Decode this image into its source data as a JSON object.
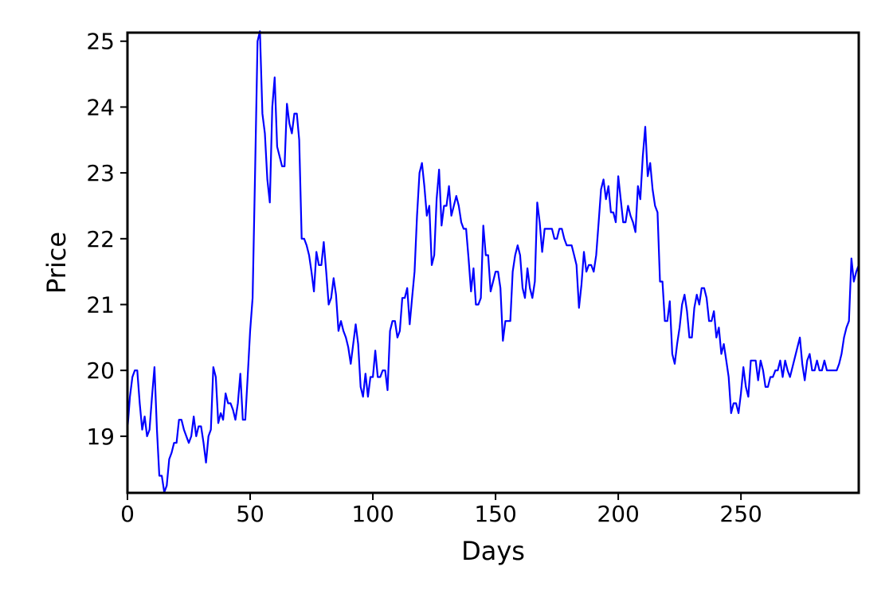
{
  "chart_data": {
    "type": "line",
    "x_label": "Days",
    "y_label": "Price",
    "color": "#0000ff",
    "x": [
      0,
      1,
      2,
      3,
      4,
      5,
      6,
      7,
      8,
      9,
      10,
      11,
      12,
      13,
      14,
      15,
      16,
      17,
      18,
      19,
      20,
      21,
      22,
      23,
      24,
      25,
      26,
      27,
      28,
      29,
      30,
      31,
      32,
      33,
      34,
      35,
      36,
      37,
      38,
      39,
      40,
      41,
      42,
      43,
      44,
      45,
      46,
      47,
      48,
      49,
      50,
      51,
      52,
      53,
      54,
      55,
      56,
      57,
      58,
      59,
      60,
      61,
      62,
      63,
      64,
      65,
      66,
      67,
      68,
      69,
      70,
      71,
      72,
      73,
      74,
      75,
      76,
      77,
      78,
      79,
      80,
      81,
      82,
      83,
      84,
      85,
      86,
      87,
      88,
      89,
      90,
      91,
      92,
      93,
      94,
      95,
      96,
      97,
      98,
      99,
      100,
      101,
      102,
      103,
      104,
      105,
      106,
      107,
      108,
      109,
      110,
      111,
      112,
      113,
      114,
      115,
      116,
      117,
      118,
      119,
      120,
      121,
      122,
      123,
      124,
      125,
      126,
      127,
      128,
      129,
      130,
      131,
      132,
      133,
      134,
      135,
      136,
      137,
      138,
      139,
      140,
      141,
      142,
      143,
      144,
      145,
      146,
      147,
      148,
      149,
      150,
      151,
      152,
      153,
      154,
      155,
      156,
      157,
      158,
      159,
      160,
      161,
      162,
      163,
      164,
      165,
      166,
      167,
      168,
      169,
      170,
      171,
      172,
      173,
      174,
      175,
      176,
      177,
      178,
      179,
      180,
      181,
      182,
      183,
      184,
      185,
      186,
      187,
      188,
      189,
      190,
      191,
      192,
      193,
      194,
      195,
      196,
      197,
      198,
      199,
      200,
      201,
      202,
      203,
      204,
      205,
      206,
      207,
      208,
      209,
      210,
      211,
      212,
      213,
      214,
      215,
      216,
      217,
      218,
      219,
      220,
      221,
      222,
      223,
      224,
      225,
      226,
      227,
      228,
      229,
      230,
      231,
      232,
      233,
      234,
      235,
      236,
      237,
      238,
      239,
      240,
      241,
      242,
      243,
      244,
      245,
      246,
      247,
      248,
      249,
      250,
      251,
      252,
      253,
      254,
      255,
      256,
      257,
      258,
      259,
      260,
      261,
      262,
      263,
      264,
      265,
      266,
      267,
      268,
      269,
      270,
      271,
      272,
      273,
      274,
      275,
      276,
      277,
      278,
      279,
      280,
      281,
      282,
      283,
      284,
      285,
      286,
      287,
      288,
      289,
      290,
      291,
      292,
      293,
      294,
      295,
      296,
      297,
      298
    ],
    "values": [
      19.1,
      19.6,
      19.9,
      20.0,
      20.0,
      19.5,
      19.1,
      19.3,
      19.0,
      19.1,
      19.6,
      20.05,
      19.1,
      18.4,
      18.4,
      18.15,
      18.25,
      18.65,
      18.75,
      18.9,
      18.9,
      19.25,
      19.25,
      19.1,
      19.0,
      18.9,
      19.0,
      19.3,
      19.0,
      19.15,
      19.15,
      18.9,
      18.6,
      19.0,
      19.1,
      20.05,
      19.9,
      19.2,
      19.35,
      19.25,
      19.65,
      19.5,
      19.5,
      19.4,
      19.25,
      19.5,
      19.95,
      19.25,
      19.25,
      19.9,
      20.6,
      21.1,
      23.0,
      25.0,
      25.15,
      23.9,
      23.6,
      22.9,
      22.55,
      24.0,
      24.45,
      23.4,
      23.25,
      23.1,
      23.1,
      24.05,
      23.75,
      23.6,
      23.9,
      23.9,
      23.5,
      22.0,
      22.0,
      21.9,
      21.75,
      21.5,
      21.2,
      21.8,
      21.6,
      21.6,
      21.95,
      21.5,
      21.0,
      21.1,
      21.4,
      21.15,
      20.6,
      20.75,
      20.6,
      20.5,
      20.35,
      20.1,
      20.4,
      20.7,
      20.4,
      19.75,
      19.6,
      19.95,
      19.6,
      19.9,
      19.9,
      20.3,
      19.9,
      19.9,
      20.0,
      20.0,
      19.7,
      20.6,
      20.75,
      20.75,
      20.5,
      20.6,
      21.1,
      21.1,
      21.25,
      20.7,
      21.1,
      21.5,
      22.35,
      23.0,
      23.15,
      22.8,
      22.35,
      22.5,
      21.6,
      21.75,
      22.6,
      23.05,
      22.2,
      22.5,
      22.5,
      22.8,
      22.35,
      22.5,
      22.65,
      22.5,
      22.25,
      22.15,
      22.15,
      21.7,
      21.2,
      21.55,
      21.0,
      21.0,
      21.1,
      22.2,
      21.75,
      21.75,
      21.2,
      21.35,
      21.5,
      21.5,
      21.25,
      20.45,
      20.75,
      20.75,
      20.75,
      21.5,
      21.75,
      21.9,
      21.75,
      21.25,
      21.1,
      21.55,
      21.25,
      21.1,
      21.35,
      22.55,
      22.25,
      21.8,
      22.15,
      22.15,
      22.15,
      22.15,
      22.0,
      22.0,
      22.15,
      22.15,
      22.0,
      21.9,
      21.9,
      21.9,
      21.75,
      21.6,
      20.95,
      21.3,
      21.8,
      21.5,
      21.6,
      21.6,
      21.5,
      21.75,
      22.25,
      22.75,
      22.9,
      22.6,
      22.8,
      22.4,
      22.4,
      22.25,
      22.95,
      22.6,
      22.25,
      22.25,
      22.5,
      22.35,
      22.25,
      22.1,
      22.8,
      22.6,
      23.25,
      23.7,
      22.95,
      23.15,
      22.75,
      22.5,
      22.4,
      21.35,
      21.35,
      20.75,
      20.75,
      21.05,
      20.25,
      20.1,
      20.4,
      20.65,
      21.0,
      21.15,
      20.9,
      20.5,
      20.5,
      20.95,
      21.15,
      21.0,
      21.25,
      21.25,
      21.1,
      20.75,
      20.75,
      20.9,
      20.5,
      20.65,
      20.25,
      20.4,
      20.15,
      19.9,
      19.35,
      19.5,
      19.5,
      19.35,
      19.65,
      20.05,
      19.75,
      19.6,
      20.15,
      20.15,
      20.15,
      19.85,
      20.15,
      20.0,
      19.75,
      19.75,
      19.9,
      19.9,
      20.0,
      20.0,
      20.15,
      19.9,
      20.15,
      20.0,
      19.9,
      20.05,
      20.2,
      20.35,
      20.5,
      20.1,
      19.85,
      20.15,
      20.25,
      20.0,
      20.0,
      20.15,
      20.0,
      20.0,
      20.15,
      20.0,
      20.0,
      20.0,
      20.0,
      20.0,
      20.1,
      20.25,
      20.5,
      20.65,
      20.75,
      21.7,
      21.35,
      21.5,
      21.6
    ],
    "xlim": [
      0,
      298
    ],
    "ylim": [
      18.14,
      25.13
    ],
    "xticks": [
      0,
      50,
      100,
      150,
      200,
      250
    ],
    "yticks": [
      19,
      20,
      21,
      22,
      23,
      24,
      25
    ]
  }
}
